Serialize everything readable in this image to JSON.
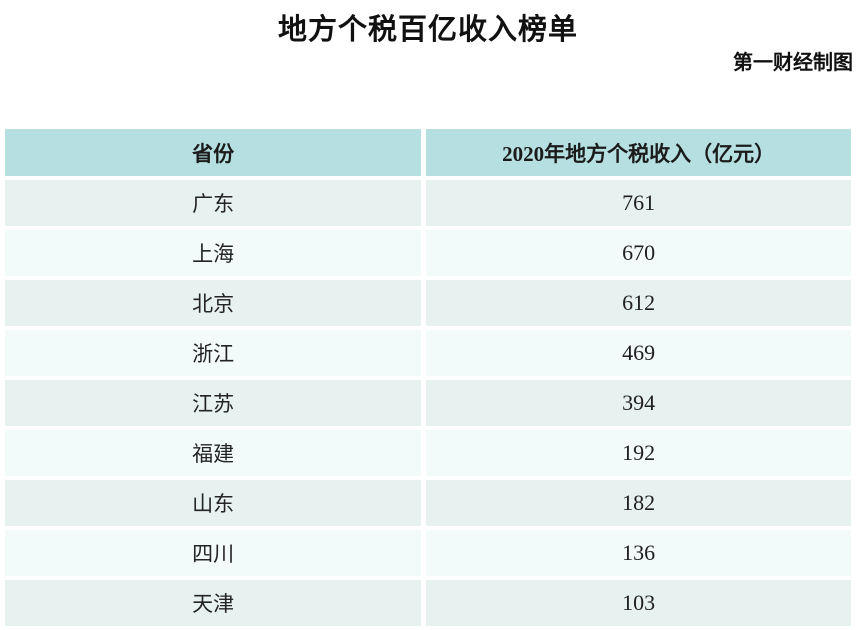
{
  "header": {
    "title": "地方个税百亿收入榜单",
    "credit": "第一财经制图"
  },
  "colors": {
    "table_header_bg": "#b5dfe0",
    "row_odd_bg": "#e7f1ef",
    "row_even_bg": "#f3fafa",
    "text": "#1f1f1f",
    "background": "#ffffff"
  },
  "chart_data": {
    "type": "table",
    "title": "地方个税百亿收入榜单",
    "subtitle": "第一财经制图",
    "columns": [
      "省份",
      "2020年地方个税收入（亿元）"
    ],
    "rows": [
      {
        "province": "广东",
        "value": "761"
      },
      {
        "province": "上海",
        "value": "670"
      },
      {
        "province": "北京",
        "value": "612"
      },
      {
        "province": "浙江",
        "value": "469"
      },
      {
        "province": "江苏",
        "value": "394"
      },
      {
        "province": "福建",
        "value": "192"
      },
      {
        "province": "山东",
        "value": "182"
      },
      {
        "province": "四川",
        "value": "136"
      },
      {
        "province": "天津",
        "value": "103"
      }
    ]
  }
}
